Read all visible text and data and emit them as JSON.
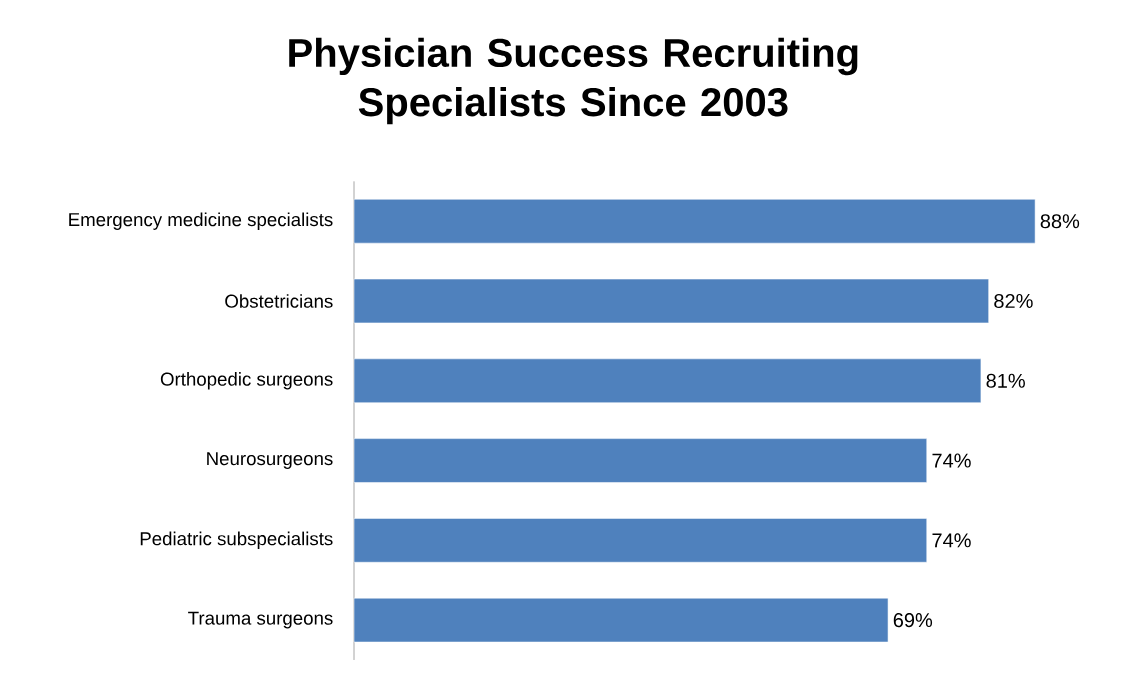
{
  "chart_data": {
    "type": "bar",
    "orientation": "horizontal",
    "title": "Physician Success Recruiting Specialists Since 2003",
    "categories": [
      "Emergency medicine specialists",
      "Obstetricians",
      "Orthopedic surgeons",
      "Neurosurgeons",
      "Pediatric subspecialists",
      "Trauma surgeons"
    ],
    "values": [
      88,
      82,
      81,
      74,
      74,
      69
    ],
    "value_labels": [
      "88%",
      "82%",
      "81%",
      "74%",
      "74%",
      "69%"
    ],
    "color": "#4f81bd"
  }
}
